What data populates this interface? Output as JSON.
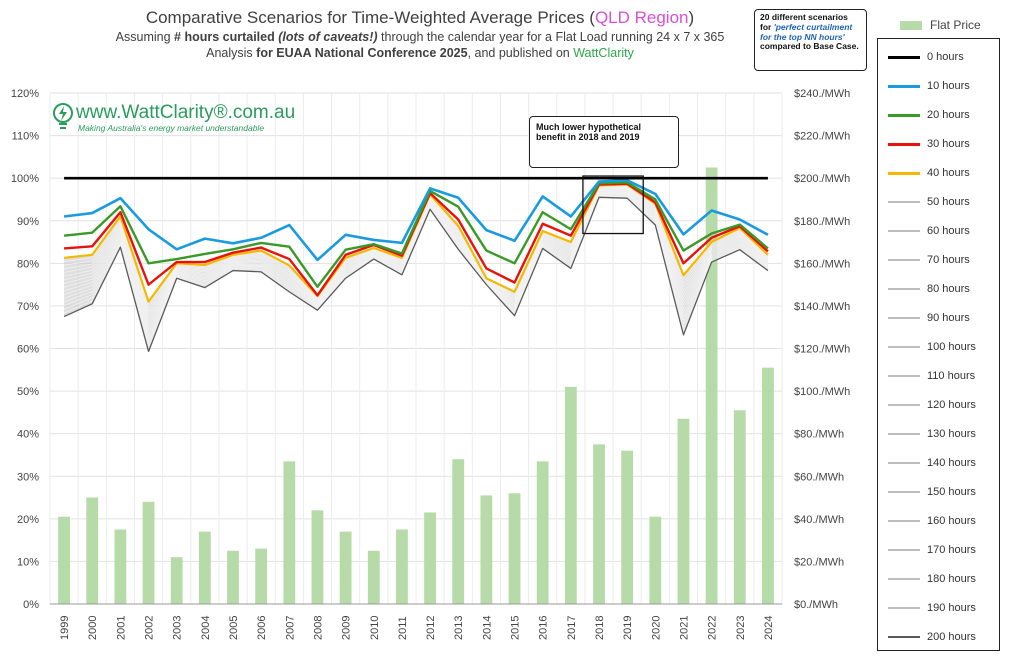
{
  "title": {
    "line1_pre": "Comparative Scenarios for Time-Weighted Average Prices (",
    "line1_region": "QLD Region",
    "line1_post": ")",
    "line2_a": "Assuming ",
    "line2_b": "# hours curtailed",
    "line2_c": " ",
    "line2_d": "(lots of caveats!)",
    "line2_e": " through the calendar year for a Flat Load running 24 x 7 x 365",
    "line3_a": "Analysis ",
    "line3_b": "for EUAA National Conference 2025",
    "line3_c": ", and published on ",
    "line3_d": "WattClarity"
  },
  "logo": {
    "site": "www.WattClarity®.com.au",
    "tagline": "Making Australia's energy market understandable"
  },
  "annotation": {
    "line1": "Much lower hypothetical",
    "line2": "benefit in 2018 and 2019"
  },
  "note": {
    "a": "20 different scenarios for ",
    "b": "'perfect curtailment for the top NN hours'",
    "c": " compared to Base Case."
  },
  "colors": {
    "bars": "#b7dba8",
    "h0": "#000000",
    "h10": "#1a9be0",
    "h20": "#3a9a27",
    "h30": "#e8120c",
    "h40": "#f5b800",
    "grey": "#bdbdbd",
    "h200": "#5a5a5a",
    "band": "#c4c4c4"
  },
  "legend": {
    "flat": "Flat Price",
    "items": [
      "0 hours",
      "10 hours",
      "20 hours",
      "30 hours",
      "40 hours",
      "50 hours",
      "60 hours",
      "70 hours",
      "80 hours",
      "90 hours",
      "100 hours",
      "110 hours",
      "120 hours",
      "130 hours",
      "140 hours",
      "150 hours",
      "160 hours",
      "170 hours",
      "180 hours",
      "190 hours",
      "200 hours"
    ]
  },
  "chart_data": {
    "type": "line+bar",
    "categories": [
      "1999",
      "2000",
      "2001",
      "2002",
      "2003",
      "2004",
      "2005",
      "2006",
      "2007",
      "2008",
      "2009",
      "2010",
      "2011",
      "2012",
      "2013",
      "2014",
      "2015",
      "2016",
      "2017",
      "2018",
      "2019",
      "2020",
      "2021",
      "2022",
      "2023",
      "2024"
    ],
    "left_axis": {
      "ticks": [
        "0%",
        "10%",
        "20%",
        "30%",
        "40%",
        "50%",
        "60%",
        "70%",
        "80%",
        "90%",
        "100%",
        "110%",
        "120%"
      ],
      "ylim": [
        0,
        120
      ]
    },
    "right_axis": {
      "ticks": [
        "$0./MWh",
        "$20./MWh",
        "$40./MWh",
        "$60./MWh",
        "$80./MWh",
        "$100./MWh",
        "$120./MWh",
        "$140./MWh",
        "$160./MWh",
        "$180./MWh",
        "$200./MWh",
        "$220./MWh",
        "$240./MWh"
      ],
      "ylim": [
        0,
        240
      ]
    },
    "bars": {
      "name": "Flat Price",
      "values": [
        41,
        50,
        35,
        48,
        22,
        34,
        25,
        26,
        67,
        44,
        34,
        25,
        35,
        43,
        68,
        51,
        52,
        67,
        102,
        75,
        72,
        41,
        87,
        205,
        91,
        111
      ]
    },
    "series": [
      {
        "name": "0 hours",
        "values": [
          100,
          100,
          100,
          100,
          100,
          100,
          100,
          100,
          100,
          100,
          100,
          100,
          100,
          100,
          100,
          100,
          100,
          100,
          100,
          100,
          100,
          100,
          100,
          100,
          100,
          100
        ]
      },
      {
        "name": "10 hours",
        "values": [
          91,
          91.8,
          95.3,
          88,
          83.3,
          85.8,
          84.7,
          86,
          89,
          80.8,
          86.7,
          85.5,
          84.8,
          97.6,
          95.4,
          87.8,
          85.3,
          95.7,
          91,
          99.2,
          99.5,
          96.3,
          86.8,
          92.4,
          90.3,
          86.7
        ]
      },
      {
        "name": "20 hours",
        "values": [
          86.5,
          87.2,
          93.4,
          80,
          81,
          82.2,
          83.3,
          84.8,
          83.9,
          74.5,
          83.2,
          84.5,
          82.3,
          97,
          93.3,
          83,
          80,
          92,
          88,
          98.8,
          99,
          95,
          83,
          87,
          89.1,
          83.5
        ]
      },
      {
        "name": "30 hours",
        "values": [
          83.5,
          84,
          92,
          75,
          80.3,
          80.3,
          82.5,
          83.7,
          81,
          72.5,
          82,
          84.3,
          81.8,
          96.5,
          90.3,
          78.8,
          75.5,
          89.3,
          86.5,
          98.5,
          98.7,
          94.3,
          80,
          86,
          88.7,
          82.8
        ]
      },
      {
        "name": "40 hours",
        "values": [
          81.3,
          82,
          91,
          71,
          80,
          79.6,
          82,
          83,
          79.5,
          72.3,
          81.3,
          83.6,
          81.3,
          96.2,
          88.8,
          76.5,
          73.3,
          87.6,
          85,
          98.3,
          98.5,
          94,
          77.2,
          85,
          88.3,
          82
        ]
      },
      {
        "name": "200 hours",
        "values": [
          67.5,
          70.5,
          83.8,
          59.3,
          76.5,
          74.3,
          78.3,
          78,
          73.3,
          69,
          76.5,
          81,
          77.3,
          92.7,
          83.3,
          75,
          67.7,
          83.5,
          78.8,
          95.5,
          95.3,
          89,
          63.2,
          80.3,
          83.2,
          78.3
        ]
      }
    ]
  }
}
